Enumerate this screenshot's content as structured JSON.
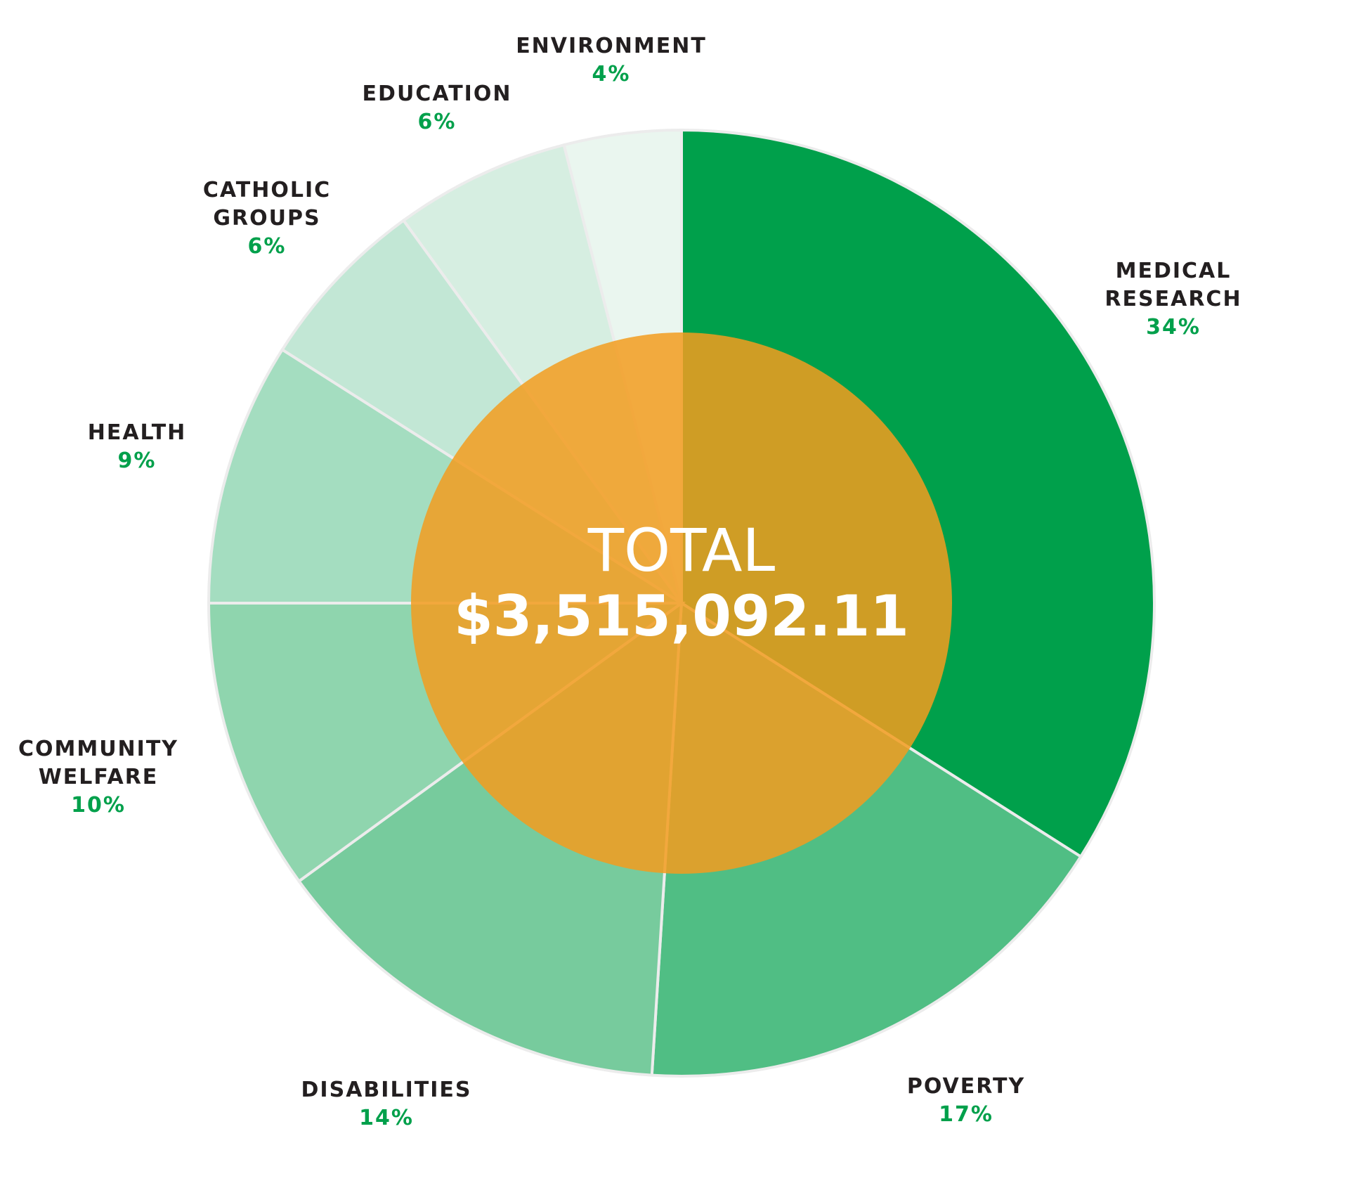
{
  "chart_data": {
    "type": "pie",
    "title": "",
    "center_label": "TOTAL",
    "center_value": "$3,515,092.11",
    "slices": [
      {
        "name_lines": [
          "MEDICAL",
          "RESEARCH"
        ],
        "percent_label": "34%",
        "value": 34,
        "color": "#00a04b"
      },
      {
        "name_lines": [
          "POVERTY"
        ],
        "percent_label": "17%",
        "value": 17,
        "color": "#50be84"
      },
      {
        "name_lines": [
          "DISABILITIES"
        ],
        "percent_label": "14%",
        "value": 14,
        "color": "#77cb9d"
      },
      {
        "name_lines": [
          "COMMUNITY",
          "WELFARE"
        ],
        "percent_label": "10%",
        "value": 10,
        "color": "#8fd5ae"
      },
      {
        "name_lines": [
          "HEALTH"
        ],
        "percent_label": "9%",
        "value": 9,
        "color": "#a4ddc0"
      },
      {
        "name_lines": [
          "CATHOLIC",
          "GROUPS"
        ],
        "percent_label": "6%",
        "value": 6,
        "color": "#c2e7d5"
      },
      {
        "name_lines": [
          "EDUCATION"
        ],
        "percent_label": "6%",
        "value": 6,
        "color": "#d6eee1"
      },
      {
        "name_lines": [
          "ENVIRONMENT"
        ],
        "percent_label": "4%",
        "value": 4,
        "color": "#eaf6ef"
      }
    ],
    "center_color": "#f39c1f",
    "separator_color": "#ececec"
  }
}
